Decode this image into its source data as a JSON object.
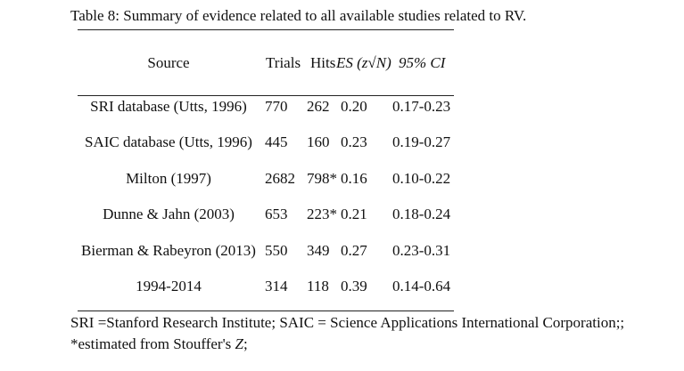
{
  "caption": "Table 8: Summary of evidence related to all available studies related to RV.",
  "headers": {
    "source": "Source",
    "trials": "Trials",
    "hits": "Hits",
    "es": "ES (z√N)",
    "ci": "95% CI"
  },
  "rows": [
    {
      "source": "SRI database (Utts, 1996)",
      "trials": "770",
      "hits": "262",
      "es": "0.20",
      "ci": "0.17-0.23"
    },
    {
      "source": "SAIC database (Utts, 1996)",
      "trials": "445",
      "hits": "160",
      "es": "0.23",
      "ci": "0.19-0.27"
    },
    {
      "source": "Milton (1997)",
      "trials": "2682",
      "hits": "798*",
      "es": "0.16",
      "ci": "0.10-0.22"
    },
    {
      "source": "Dunne & Jahn (2003)",
      "trials": "653",
      "hits": "223*",
      "es": "0.21",
      "ci": "0.18-0.24"
    },
    {
      "source": "Bierman & Rabeyron (2013)",
      "trials": "550",
      "hits": "349",
      "es": "0.27",
      "ci": "0.23-0.31"
    },
    {
      "source": "1994-2014",
      "trials": "314",
      "hits": "118",
      "es": "0.39",
      "ci": "0.14-0.64"
    }
  ],
  "notes": {
    "line1": "SRI =Stanford Research Institute;  SAIC = Science Applications International Corporation;;",
    "line2_prefix": "*estimated from Stouffer's ",
    "line2_italic": "Z",
    "line2_suffix": ";"
  }
}
